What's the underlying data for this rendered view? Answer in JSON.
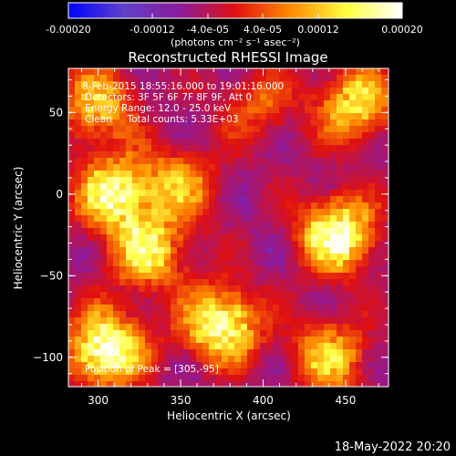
{
  "chart_data": {
    "type": "heatmap",
    "title": "Reconstructed RHESSI Image",
    "xlabel": "Heliocentric X (arcsec)",
    "ylabel": "Heliocentric Y (arcsec)",
    "xlim": [
      282,
      476
    ],
    "ylim": [
      -118,
      77
    ],
    "x_ticks": [
      300,
      350,
      400,
      450
    ],
    "y_ticks": [
      50,
      0,
      -50,
      -100
    ],
    "colorbar": {
      "min": -0.0002,
      "max": 0.0002,
      "ticks": [
        "-0.00020",
        "-0.00012",
        "-4.0e-05",
        "4.0e-05",
        "0.00012",
        "0.00020"
      ],
      "unit_label": "(photons cm⁻² s⁻¹ asec⁻²)",
      "colormap": [
        "#0000ff",
        "#6040c8",
        "#8c1a9c",
        "#e01010",
        "#ff8c00",
        "#ffff40",
        "#ffffff"
      ]
    },
    "annotations": {
      "time_range": "8-Feb-2015 18:55:16.000 to 19:01:16.000",
      "detectors": "Detectors: 3F 5F 6F 7F 8F 9F, Att 0",
      "energy": "Energy Range: 12.0 - 25.0 keV",
      "method": "Clean     Total counts: 5.33E+03",
      "peak": "Position of Peak = [305,-95]"
    },
    "peak_position": [
      305,
      -95
    ],
    "bright_regions": [
      {
        "x": 300,
        "y": 55,
        "intensity": 0.6
      },
      {
        "x": 310,
        "y": 0,
        "intensity": 0.85
      },
      {
        "x": 330,
        "y": -35,
        "intensity": 0.7
      },
      {
        "x": 305,
        "y": -95,
        "intensity": 1.0
      },
      {
        "x": 375,
        "y": -80,
        "intensity": 0.9
      },
      {
        "x": 350,
        "y": 5,
        "intensity": 0.5
      },
      {
        "x": 455,
        "y": 55,
        "intensity": 0.7
      },
      {
        "x": 445,
        "y": -25,
        "intensity": 0.95
      },
      {
        "x": 440,
        "y": -100,
        "intensity": 0.6
      },
      {
        "x": 395,
        "y": 55,
        "intensity": 0.35
      }
    ]
  },
  "footer": {
    "timestamp": "18-May-2022 20:20"
  }
}
